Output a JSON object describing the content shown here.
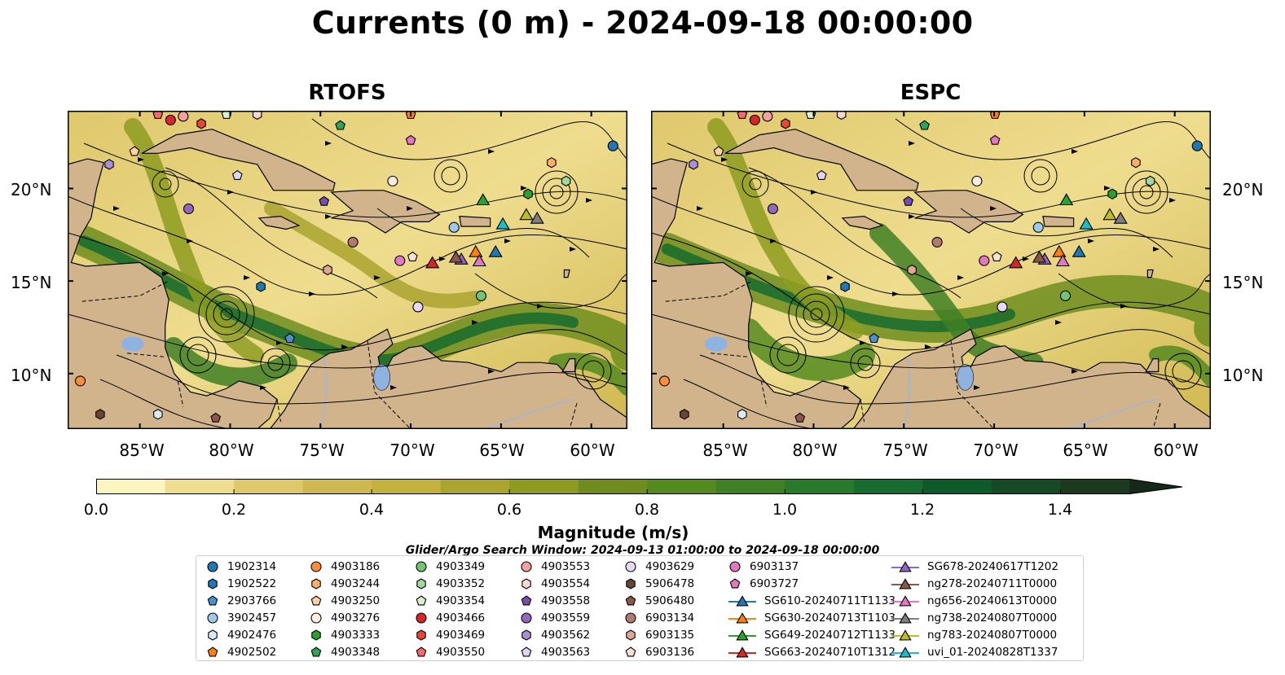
{
  "title": "Currents (0 m) - 2024-09-18 00:00:00",
  "panels": [
    {
      "title": "RTOFS"
    },
    {
      "title": "ESPC"
    }
  ],
  "map": {
    "lon_range": [
      -89,
      -58
    ],
    "lat_range": [
      7,
      24.2
    ],
    "lat_ticks": [
      {
        "value": 20,
        "label": "20°N"
      },
      {
        "value": 15,
        "label": "15°N"
      },
      {
        "value": 10,
        "label": "10°N"
      }
    ],
    "lon_ticks": [
      {
        "value": -85,
        "label": "85°W"
      },
      {
        "value": -80,
        "label": "80°W"
      },
      {
        "value": -75,
        "label": "75°W"
      },
      {
        "value": -70,
        "label": "70°W"
      },
      {
        "value": -65,
        "label": "65°W"
      },
      {
        "value": -60,
        "label": "60°W"
      }
    ],
    "colors": {
      "land": "#d2b48c",
      "lake": "#8fb3e0",
      "river": "#9db8d8"
    }
  },
  "colorbar": {
    "label": "Magnitude (m/s)",
    "min": 0.0,
    "max": 1.5,
    "colors": [
      "#fbf5c0",
      "#efdd8f",
      "#dfc86c",
      "#d0b850",
      "#c3b23e",
      "#a9a530",
      "#8d9c20",
      "#6f8d1e",
      "#558a1e",
      "#3f7f25",
      "#2a7a2c",
      "#166b2e",
      "#0e5a29",
      "#174a24",
      "#1b3a1e",
      "#16281a"
    ],
    "ticks": [
      {
        "value": 0.0,
        "label": "0.0"
      },
      {
        "value": 0.2,
        "label": "0.2"
      },
      {
        "value": 0.4,
        "label": "0.4"
      },
      {
        "value": 0.6,
        "label": "0.6"
      },
      {
        "value": 0.8,
        "label": "0.8"
      },
      {
        "value": 1.0,
        "label": "1.0"
      },
      {
        "value": 1.2,
        "label": "1.2"
      },
      {
        "value": 1.4,
        "label": "1.4"
      }
    ]
  },
  "search_window": "Glider/Argo Search Window: 2024-09-13 01:00:00 to 2024-09-18 00:00:00",
  "legend": [
    {
      "label": "1902314",
      "marker": "circle",
      "color": "#1f77b4"
    },
    {
      "label": "1902522",
      "marker": "hexagon",
      "color": "#1f77b4"
    },
    {
      "label": "2903766",
      "marker": "pentagon",
      "color": "#4a90d0"
    },
    {
      "label": "3902457",
      "marker": "circle",
      "color": "#9ecae9"
    },
    {
      "label": "4902476",
      "marker": "hexagon",
      "color": "#dbe9f6"
    },
    {
      "label": "4902502",
      "marker": "pentagon",
      "color": "#ff7f0e"
    },
    {
      "label": "4903186",
      "marker": "circle",
      "color": "#fd8d3c"
    },
    {
      "label": "4903244",
      "marker": "hexagon",
      "color": "#fdae6b"
    },
    {
      "label": "4903250",
      "marker": "pentagon",
      "color": "#fdd0a2"
    },
    {
      "label": "4903276",
      "marker": "circle",
      "color": "#feedde"
    },
    {
      "label": "4903333",
      "marker": "hexagon",
      "color": "#2ca02c"
    },
    {
      "label": "4903348",
      "marker": "pentagon",
      "color": "#31a354"
    },
    {
      "label": "4903349",
      "marker": "circle",
      "color": "#74c476"
    },
    {
      "label": "4903352",
      "marker": "hexagon",
      "color": "#a1d99b"
    },
    {
      "label": "4903354",
      "marker": "pentagon",
      "color": "#d8f0d0"
    },
    {
      "label": "4903466",
      "marker": "circle",
      "color": "#d62728"
    },
    {
      "label": "4903469",
      "marker": "hexagon",
      "color": "#e34a33"
    },
    {
      "label": "4903550",
      "marker": "pentagon",
      "color": "#f46a6a"
    },
    {
      "label": "4903553",
      "marker": "circle",
      "color": "#f4a0a0"
    },
    {
      "label": "4903554",
      "marker": "hexagon",
      "color": "#fcd5d5"
    },
    {
      "label": "4903558",
      "marker": "pentagon",
      "color": "#7b4bb0"
    },
    {
      "label": "4903559",
      "marker": "circle",
      "color": "#9467bd"
    },
    {
      "label": "4903562",
      "marker": "hexagon",
      "color": "#ab8fd8"
    },
    {
      "label": "4903563",
      "marker": "pentagon",
      "color": "#e0d4f5"
    },
    {
      "label": "4903629",
      "marker": "circle",
      "color": "#e8d8f8"
    },
    {
      "label": "5906478",
      "marker": "hexagon",
      "color": "#6b4438"
    },
    {
      "label": "5906480",
      "marker": "pentagon",
      "color": "#8c564b"
    },
    {
      "label": "6903134",
      "marker": "circle",
      "color": "#b07a6e"
    },
    {
      "label": "6903135",
      "marker": "hexagon",
      "color": "#e0a890"
    },
    {
      "label": "6903136",
      "marker": "pentagon",
      "color": "#fbe0d4"
    },
    {
      "label": "6903137",
      "marker": "circle",
      "color": "#e377c2"
    },
    {
      "label": "6903727",
      "marker": "pentagon",
      "color": "#e377c2"
    },
    {
      "label": "SG610-20240711T1133",
      "marker": "triangle",
      "color": "#1f77b4"
    },
    {
      "label": "SG630-20240713T1103",
      "marker": "triangle",
      "color": "#ff7f0e"
    },
    {
      "label": "SG649-20240712T1133",
      "marker": "triangle",
      "color": "#2ca02c"
    },
    {
      "label": "SG663-20240710T1312",
      "marker": "triangle",
      "color": "#d62728"
    },
    {
      "label": "SG678-20240617T1202",
      "marker": "triangle",
      "color": "#9467bd"
    },
    {
      "label": "ng278-20240711T0000",
      "marker": "triangle",
      "color": "#8c564b"
    },
    {
      "label": "ng656-20240613T0000",
      "marker": "triangle",
      "color": "#e377c2"
    },
    {
      "label": "ng738-20240807T0000",
      "marker": "triangle",
      "color": "#7f7f7f"
    },
    {
      "label": "ng783-20240807T0000",
      "marker": "triangle",
      "color": "#bcbd22"
    },
    {
      "label": "uvi_01-20240828T1337",
      "marker": "triangle",
      "color": "#17becf"
    }
  ],
  "floats": [
    {
      "lon": -58.8,
      "lat": 22.3,
      "marker": "circle",
      "color": "#1f77b4"
    },
    {
      "lon": -78.3,
      "lat": 14.7,
      "marker": "hexagon",
      "color": "#1f77b4"
    },
    {
      "lon": -76.7,
      "lat": 11.9,
      "marker": "pentagon",
      "color": "#4a90d0"
    },
    {
      "lon": -67.6,
      "lat": 17.9,
      "marker": "circle",
      "color": "#9ecae9"
    },
    {
      "lon": -84.0,
      "lat": 7.8,
      "marker": "hexagon",
      "color": "#dbe9f6"
    },
    {
      "lon": -70.0,
      "lat": 24.0,
      "marker": "pentagon",
      "color": "#ff7f0e"
    },
    {
      "lon": -88.3,
      "lat": 9.6,
      "marker": "circle",
      "color": "#fd8d3c"
    },
    {
      "lon": -62.2,
      "lat": 21.4,
      "marker": "hexagon",
      "color": "#fdae6b"
    },
    {
      "lon": -85.3,
      "lat": 22.0,
      "marker": "pentagon",
      "color": "#fdd0a2"
    },
    {
      "lon": -71.0,
      "lat": 20.4,
      "marker": "circle",
      "color": "#feedde"
    },
    {
      "lon": -63.5,
      "lat": 19.7,
      "marker": "hexagon",
      "color": "#2ca02c"
    },
    {
      "lon": -73.9,
      "lat": 23.4,
      "marker": "pentagon",
      "color": "#31a354"
    },
    {
      "lon": -66.1,
      "lat": 14.2,
      "marker": "circle",
      "color": "#74c476"
    },
    {
      "lon": -61.4,
      "lat": 20.4,
      "marker": "hexagon",
      "color": "#a1d99b"
    },
    {
      "lon": -80.2,
      "lat": 24.0,
      "marker": "pentagon",
      "color": "#d8f0d0"
    },
    {
      "lon": -83.3,
      "lat": 23.7,
      "marker": "circle",
      "color": "#d62728"
    },
    {
      "lon": -81.6,
      "lat": 23.5,
      "marker": "hexagon",
      "color": "#e34a33"
    },
    {
      "lon": -84.0,
      "lat": 24.0,
      "marker": "pentagon",
      "color": "#f46a6a"
    },
    {
      "lon": -82.6,
      "lat": 23.9,
      "marker": "circle",
      "color": "#f4a0a0"
    },
    {
      "lon": -78.5,
      "lat": 24.0,
      "marker": "hexagon",
      "color": "#fcd5d5"
    },
    {
      "lon": -74.8,
      "lat": 19.3,
      "marker": "pentagon",
      "color": "#7b4bb0"
    },
    {
      "lon": -82.3,
      "lat": 18.9,
      "marker": "circle",
      "color": "#9467bd"
    },
    {
      "lon": -86.7,
      "lat": 21.3,
      "marker": "hexagon",
      "color": "#ab8fd8"
    },
    {
      "lon": -79.6,
      "lat": 20.7,
      "marker": "pentagon",
      "color": "#e0d4f5"
    },
    {
      "lon": -69.6,
      "lat": 13.6,
      "marker": "circle",
      "color": "#e8d8f8"
    },
    {
      "lon": -87.2,
      "lat": 7.8,
      "marker": "hexagon",
      "color": "#6b4438"
    },
    {
      "lon": -80.8,
      "lat": 7.6,
      "marker": "pentagon",
      "color": "#8c564b"
    },
    {
      "lon": -73.2,
      "lat": 17.1,
      "marker": "circle",
      "color": "#b07a6e"
    },
    {
      "lon": -74.6,
      "lat": 15.6,
      "marker": "hexagon",
      "color": "#e0a890"
    },
    {
      "lon": -69.9,
      "lat": 16.3,
      "marker": "pentagon",
      "color": "#fbe0d4"
    },
    {
      "lon": -70.6,
      "lat": 16.1,
      "marker": "circle",
      "color": "#e377c2"
    },
    {
      "lon": -70.0,
      "lat": 22.6,
      "marker": "pentagon",
      "color": "#e377c2"
    }
  ],
  "gliders": [
    {
      "lon": -65.3,
      "lat": 16.6,
      "color": "#1f77b4"
    },
    {
      "lon": -66.4,
      "lat": 16.6,
      "color": "#ff7f0e"
    },
    {
      "lon": -66.0,
      "lat": 19.4,
      "color": "#2ca02c"
    },
    {
      "lon": -68.8,
      "lat": 16.0,
      "color": "#d62728"
    },
    {
      "lon": -67.2,
      "lat": 16.2,
      "color": "#9467bd"
    },
    {
      "lon": -67.5,
      "lat": 16.3,
      "color": "#8c564b"
    },
    {
      "lon": -66.2,
      "lat": 16.1,
      "color": "#e377c2"
    },
    {
      "lon": -63.0,
      "lat": 18.4,
      "color": "#7f7f7f"
    },
    {
      "lon": -63.6,
      "lat": 18.6,
      "color": "#bcbd22"
    },
    {
      "lon": -64.9,
      "lat": 18.1,
      "color": "#17becf"
    }
  ]
}
